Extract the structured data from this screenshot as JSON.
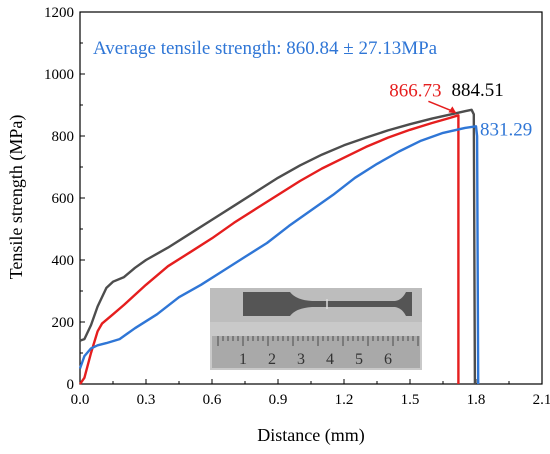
{
  "chart_data": {
    "type": "line",
    "xlabel": "Distance (mm)",
    "ylabel": "Tensile strength (MPa)",
    "xlim": [
      0.0,
      2.1
    ],
    "ylim": [
      0,
      1200
    ],
    "x_ticks": [
      "0.0",
      "0.3",
      "0.6",
      "0.9",
      "1.2",
      "1.5",
      "1.8",
      "2.1"
    ],
    "y_ticks": [
      "0",
      "200",
      "400",
      "600",
      "800",
      "1000",
      "1200"
    ],
    "grid": false,
    "annotation": {
      "text": "Average tensile strength: 860.84 ± 27.13MPa",
      "color": "#2f76d6"
    },
    "series": [
      {
        "color": "#4d4d4d",
        "peak_label": "884.51",
        "label_color": "#000000",
        "points": [
          [
            0.0,
            140
          ],
          [
            0.02,
            145
          ],
          [
            0.05,
            190
          ],
          [
            0.08,
            250
          ],
          [
            0.12,
            310
          ],
          [
            0.15,
            330
          ],
          [
            0.2,
            345
          ],
          [
            0.25,
            375
          ],
          [
            0.3,
            400
          ],
          [
            0.4,
            440
          ],
          [
            0.5,
            485
          ],
          [
            0.6,
            530
          ],
          [
            0.7,
            575
          ],
          [
            0.8,
            620
          ],
          [
            0.9,
            665
          ],
          [
            1.0,
            705
          ],
          [
            1.1,
            740
          ],
          [
            1.2,
            770
          ],
          [
            1.3,
            795
          ],
          [
            1.4,
            818
          ],
          [
            1.5,
            838
          ],
          [
            1.6,
            856
          ],
          [
            1.7,
            872
          ],
          [
            1.75,
            880
          ],
          [
            1.78,
            884.51
          ],
          [
            1.79,
            870
          ],
          [
            1.795,
            0
          ]
        ]
      },
      {
        "color": "#e51e1e",
        "peak_label": "866.73",
        "label_color": "#e51e1e",
        "points": [
          [
            0.0,
            0
          ],
          [
            0.02,
            20
          ],
          [
            0.05,
            100
          ],
          [
            0.08,
            170
          ],
          [
            0.1,
            195
          ],
          [
            0.15,
            225
          ],
          [
            0.2,
            255
          ],
          [
            0.3,
            320
          ],
          [
            0.4,
            380
          ],
          [
            0.5,
            425
          ],
          [
            0.6,
            470
          ],
          [
            0.7,
            520
          ],
          [
            0.8,
            565
          ],
          [
            0.9,
            610
          ],
          [
            1.0,
            655
          ],
          [
            1.1,
            695
          ],
          [
            1.2,
            730
          ],
          [
            1.3,
            765
          ],
          [
            1.4,
            795
          ],
          [
            1.5,
            820
          ],
          [
            1.6,
            842
          ],
          [
            1.68,
            858
          ],
          [
            1.72,
            866.73
          ],
          [
            1.72,
            0
          ]
        ]
      },
      {
        "color": "#2f76d6",
        "peak_label": "831.29",
        "label_color": "#2f76d6",
        "points": [
          [
            0.0,
            50
          ],
          [
            0.02,
            90
          ],
          [
            0.05,
            115
          ],
          [
            0.08,
            125
          ],
          [
            0.12,
            132
          ],
          [
            0.18,
            145
          ],
          [
            0.25,
            180
          ],
          [
            0.35,
            225
          ],
          [
            0.45,
            280
          ],
          [
            0.55,
            320
          ],
          [
            0.65,
            365
          ],
          [
            0.75,
            410
          ],
          [
            0.85,
            455
          ],
          [
            0.95,
            510
          ],
          [
            1.05,
            560
          ],
          [
            1.15,
            610
          ],
          [
            1.25,
            665
          ],
          [
            1.35,
            710
          ],
          [
            1.45,
            750
          ],
          [
            1.55,
            785
          ],
          [
            1.65,
            810
          ],
          [
            1.75,
            826
          ],
          [
            1.8,
            831.29
          ],
          [
            1.805,
            800
          ],
          [
            1.81,
            0
          ]
        ]
      }
    ],
    "inset_photo": {
      "ruler_labels": [
        "1",
        "2",
        "3",
        "4",
        "5",
        "6"
      ]
    }
  }
}
